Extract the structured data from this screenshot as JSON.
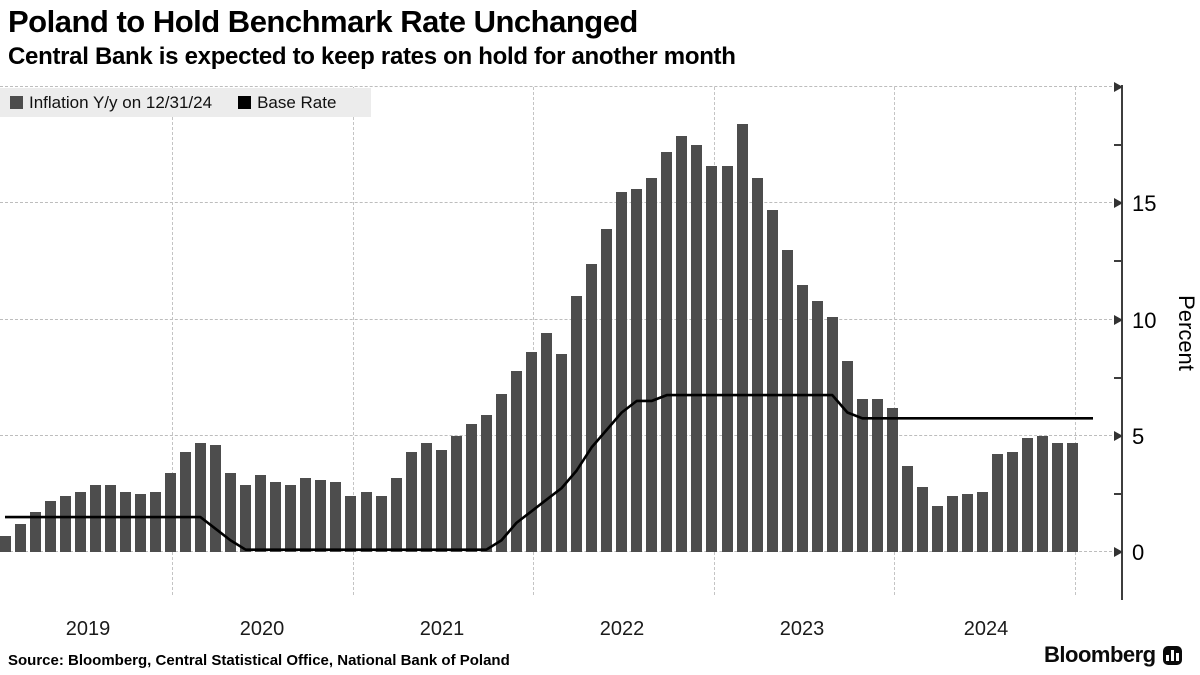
{
  "header": {
    "title": "Poland to Hold Benchmark Rate Unchanged",
    "subtitle": "Central Bank is expected to keep rates on hold for another month"
  },
  "legend": {
    "items": [
      {
        "label": "Inflation Y/y on 12/31/24",
        "color": "#4d4d4d"
      },
      {
        "label": "Base Rate",
        "color": "#000000"
      }
    ]
  },
  "chart_data": {
    "type": "bar",
    "title": "Poland to Hold Benchmark Rate Unchanged",
    "xlabel": "",
    "ylabel": "Percent",
    "ylim": [
      0,
      20
    ],
    "grid_values": [
      0,
      5,
      10,
      15,
      20
    ],
    "yticks": [
      {
        "value": 0,
        "label": "0"
      },
      {
        "value": 5,
        "label": "5"
      },
      {
        "value": 10,
        "label": "10"
      },
      {
        "value": 15,
        "label": "15"
      }
    ],
    "minor_ticks": [
      2.5,
      7.5,
      12.5,
      17.5
    ],
    "x_years": [
      "2019",
      "2020",
      "2021",
      "2022",
      "2023",
      "2024"
    ],
    "x_start": "2019-01",
    "x_end": "2024-12",
    "legend_position": "top-left",
    "grid": "dashed",
    "series": [
      {
        "name": "Inflation Y/y on 12/31/24",
        "type": "bar",
        "color": "#4d4d4d",
        "values": [
          0.7,
          1.2,
          1.7,
          2.2,
          2.4,
          2.6,
          2.9,
          2.9,
          2.6,
          2.5,
          2.6,
          3.4,
          4.3,
          4.7,
          4.6,
          3.4,
          2.9,
          3.3,
          3.0,
          2.9,
          3.2,
          3.1,
          3.0,
          2.4,
          2.6,
          2.4,
          3.2,
          4.3,
          4.7,
          4.4,
          5.0,
          5.5,
          5.9,
          6.8,
          7.8,
          8.6,
          9.4,
          8.5,
          11.0,
          12.4,
          13.9,
          15.5,
          15.6,
          16.1,
          17.2,
          17.9,
          17.5,
          16.6,
          16.6,
          18.4,
          16.1,
          14.7,
          13.0,
          11.5,
          10.8,
          10.1,
          8.2,
          6.6,
          6.6,
          6.2,
          3.7,
          2.8,
          2.0,
          2.4,
          2.5,
          2.6,
          4.2,
          4.3,
          4.9,
          5.0,
          4.7,
          4.7
        ]
      },
      {
        "name": "Base Rate",
        "type": "line",
        "color": "#000000",
        "values": [
          1.5,
          1.5,
          1.5,
          1.5,
          1.5,
          1.5,
          1.5,
          1.5,
          1.5,
          1.5,
          1.5,
          1.5,
          1.5,
          1.5,
          1.0,
          0.5,
          0.1,
          0.1,
          0.1,
          0.1,
          0.1,
          0.1,
          0.1,
          0.1,
          0.1,
          0.1,
          0.1,
          0.1,
          0.1,
          0.1,
          0.1,
          0.1,
          0.1,
          0.5,
          1.25,
          1.75,
          2.25,
          2.75,
          3.5,
          4.5,
          5.25,
          6.0,
          6.5,
          6.5,
          6.75,
          6.75,
          6.75,
          6.75,
          6.75,
          6.75,
          6.75,
          6.75,
          6.75,
          6.75,
          6.75,
          6.75,
          6.0,
          5.75,
          5.75,
          5.75,
          5.75,
          5.75,
          5.75,
          5.75,
          5.75,
          5.75,
          5.75,
          5.75,
          5.75,
          5.75,
          5.75,
          5.75
        ]
      }
    ]
  },
  "footer": {
    "source": "Source: Bloomberg, Central Statistical Office, National Bank of Poland",
    "logo_text": "Bloomberg"
  }
}
